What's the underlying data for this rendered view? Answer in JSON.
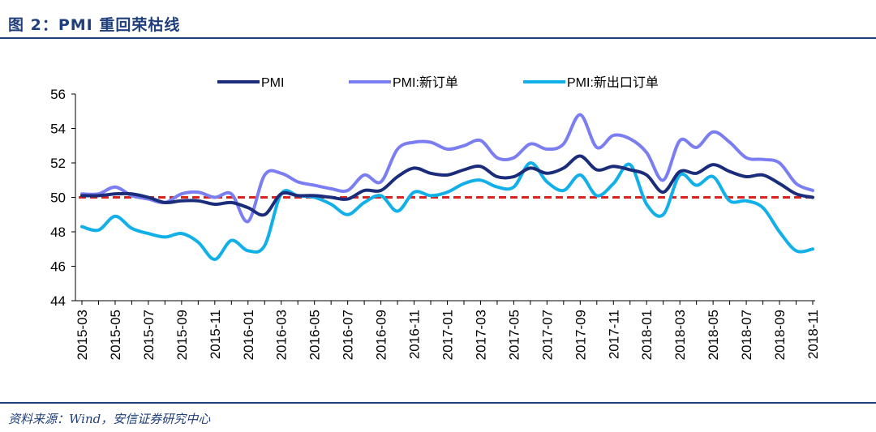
{
  "header": {
    "figure_title": "图 2：PMI 重回荣枯线"
  },
  "footer": {
    "source": "资料来源：Wind，安信证券研究中心"
  },
  "chart_data": {
    "type": "line",
    "title": "",
    "xlabel": "",
    "ylabel": "",
    "ylim": [
      44,
      56
    ],
    "y_ticks": [
      44,
      46,
      48,
      50,
      52,
      54,
      56
    ],
    "x_tick_labels": [
      "2015-03",
      "2015-05",
      "2015-07",
      "2015-09",
      "2015-11",
      "2016-01",
      "2016-03",
      "2016-05",
      "2016-07",
      "2016-09",
      "2016-11",
      "2017-01",
      "2017-03",
      "2017-05",
      "2017-07",
      "2017-09",
      "2017-11",
      "2018-01",
      "2018-03",
      "2018-05",
      "2018-07",
      "2018-09",
      "2018-11"
    ],
    "categories": [
      "2015-03",
      "2015-04",
      "2015-05",
      "2015-06",
      "2015-07",
      "2015-08",
      "2015-09",
      "2015-10",
      "2015-11",
      "2015-12",
      "2016-01",
      "2016-02",
      "2016-03",
      "2016-04",
      "2016-05",
      "2016-06",
      "2016-07",
      "2016-08",
      "2016-09",
      "2016-10",
      "2016-11",
      "2016-12",
      "2017-01",
      "2017-02",
      "2017-03",
      "2017-04",
      "2017-05",
      "2017-06",
      "2017-07",
      "2017-08",
      "2017-09",
      "2017-10",
      "2017-11",
      "2017-12",
      "2018-01",
      "2018-02",
      "2018-03",
      "2018-04",
      "2018-05",
      "2018-06",
      "2018-07",
      "2018-08",
      "2018-09",
      "2018-10",
      "2018-11"
    ],
    "series": [
      {
        "name": "PMI",
        "color": "#1a2c7a",
        "values": [
          50.1,
          50.1,
          50.2,
          50.2,
          50.0,
          49.7,
          49.8,
          49.8,
          49.6,
          49.7,
          49.4,
          49.0,
          50.2,
          50.1,
          50.1,
          50.0,
          49.9,
          50.4,
          50.4,
          51.2,
          51.7,
          51.4,
          51.3,
          51.6,
          51.8,
          51.2,
          51.2,
          51.7,
          51.4,
          51.7,
          52.4,
          51.6,
          51.8,
          51.6,
          51.3,
          50.3,
          51.5,
          51.4,
          51.9,
          51.5,
          51.2,
          51.3,
          50.8,
          50.2,
          50.0
        ]
      },
      {
        "name": "PMI:新订单",
        "color": "#7b7ef0",
        "values": [
          50.2,
          50.2,
          50.6,
          50.1,
          49.9,
          49.7,
          50.2,
          50.3,
          50.0,
          50.2,
          48.6,
          51.3,
          51.4,
          50.9,
          50.7,
          50.5,
          50.4,
          51.3,
          50.9,
          52.8,
          53.2,
          53.2,
          52.8,
          53.0,
          53.3,
          52.3,
          52.3,
          53.1,
          52.8,
          53.1,
          54.8,
          52.9,
          53.6,
          53.4,
          52.6,
          51.0,
          53.3,
          52.9,
          53.8,
          53.2,
          52.3,
          52.2,
          52.0,
          50.8,
          50.4
        ]
      },
      {
        "name": "PMI:新出口订单",
        "color": "#12b0e8",
        "values": [
          48.3,
          48.1,
          48.9,
          48.2,
          47.9,
          47.7,
          47.9,
          47.4,
          46.4,
          47.5,
          46.9,
          47.2,
          50.2,
          50.1,
          50.0,
          49.6,
          49.0,
          49.7,
          50.1,
          49.2,
          50.3,
          50.1,
          50.3,
          50.8,
          51.0,
          50.6,
          50.6,
          52.0,
          50.9,
          50.4,
          51.3,
          50.1,
          50.8,
          51.9,
          49.6,
          49.0,
          51.3,
          50.7,
          51.2,
          49.8,
          49.8,
          49.4,
          48.0,
          46.9,
          47.0
        ]
      }
    ],
    "reference_line": {
      "value": 50,
      "color": "#e0201a",
      "style": "dashed"
    },
    "legend_position": "top-center",
    "grid": false
  }
}
